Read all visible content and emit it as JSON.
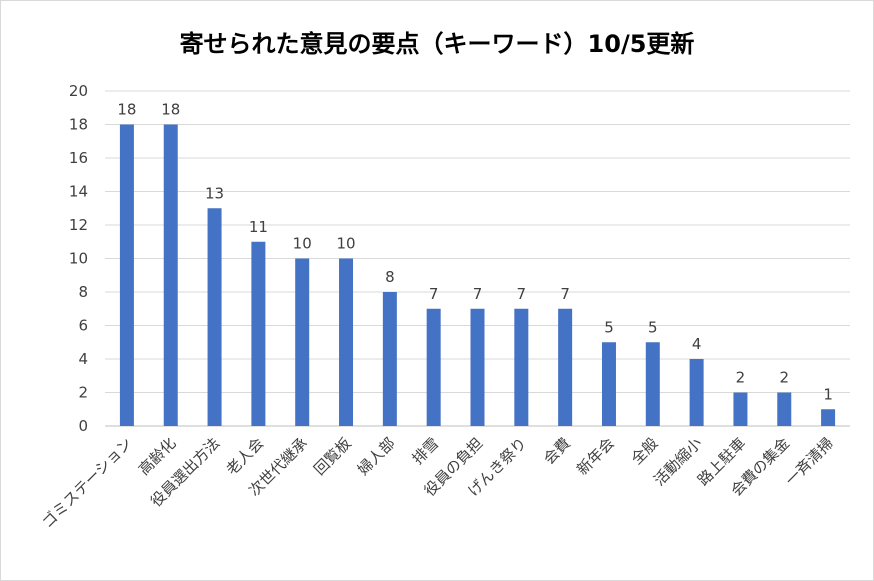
{
  "chart_data": {
    "type": "bar",
    "title": "寄せられた意見の要点（キーワード）10/5更新",
    "categories": [
      "ゴミステーション",
      "高齢化",
      "役員選出方法",
      "老人会",
      "次世代継承",
      "回覧板",
      "婦人部",
      "排雪",
      "役員の負担",
      "げんき祭り",
      "会費",
      "新年会",
      "全般",
      "活動縮小",
      "路上駐車",
      "会費の集金",
      "一斉清掃"
    ],
    "values": [
      18,
      18,
      13,
      11,
      10,
      10,
      8,
      7,
      7,
      7,
      7,
      5,
      5,
      4,
      2,
      2,
      1
    ],
    "ylim": [
      0,
      20
    ],
    "yticks": [
      "0",
      "2",
      "4",
      "6",
      "8",
      "10",
      "12",
      "14",
      "16",
      "18",
      "20"
    ],
    "grid": true,
    "data_labels": true,
    "bar_color": "#4472C4",
    "xlabel": "",
    "ylabel": ""
  }
}
